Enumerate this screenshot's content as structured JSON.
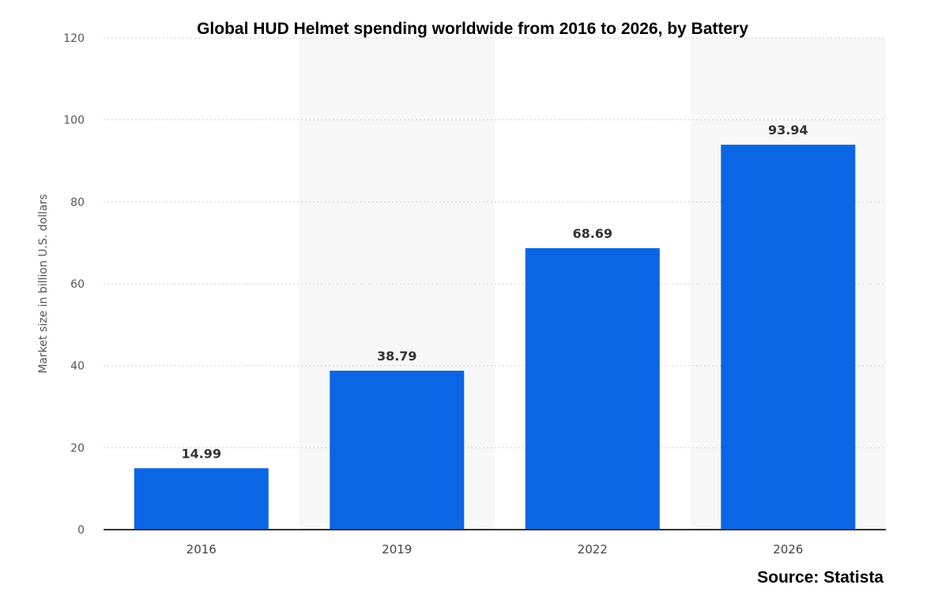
{
  "chart_data": {
    "type": "bar",
    "title": "Global HUD Helmet spending worldwide from 2016 to 2026, by Battery",
    "xlabel": "",
    "ylabel": "Market size in billion U.S. dollars",
    "categories": [
      "2016",
      "2019",
      "2022",
      "2026"
    ],
    "values": [
      14.99,
      38.79,
      68.69,
      93.94
    ],
    "data_labels": [
      "14.99",
      "38.79",
      "68.69",
      "93.94"
    ],
    "ylim": [
      0,
      120
    ],
    "yticks": [
      0,
      20,
      40,
      60,
      80,
      100,
      120
    ],
    "grid": "horizontal dotted",
    "bar_color": "#0a66e4",
    "shade_color": "#f7f7f7",
    "source": "Source: Statista"
  }
}
